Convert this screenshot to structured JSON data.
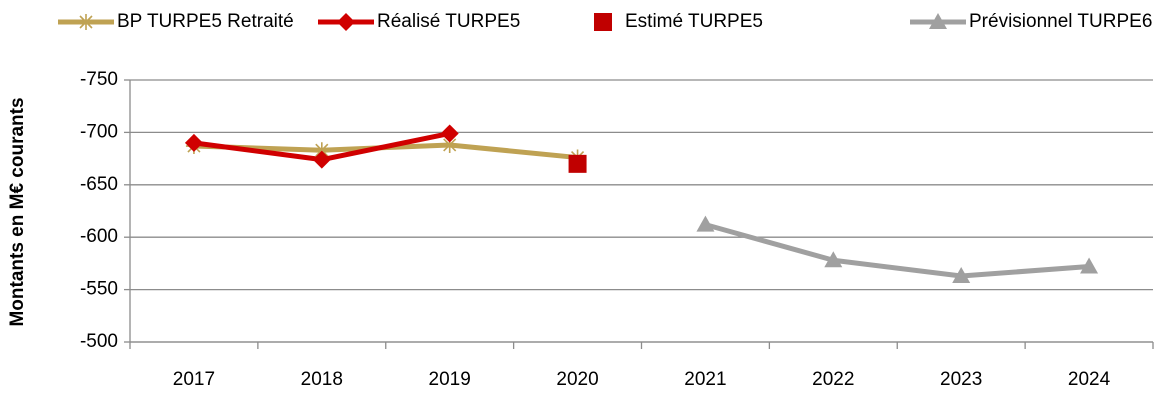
{
  "chart_data": {
    "type": "line",
    "y_label": "Montants en M€ courants",
    "categories": [
      "2017",
      "2018",
      "2019",
      "2020",
      "2021",
      "2022",
      "2023",
      "2024"
    ],
    "series": [
      {
        "name": "BP TURPE5 Retraité",
        "color": "#bfa253",
        "marker": "star",
        "line": true,
        "values": [
          -687,
          -683,
          -688,
          -676,
          null,
          null,
          null,
          null
        ]
      },
      {
        "name": "Réalisé TURPE5",
        "color": "#d00000",
        "marker": "diamond",
        "line": true,
        "values": [
          -690,
          -674,
          -699,
          null,
          null,
          null,
          null,
          null
        ]
      },
      {
        "name": "Estimé TURPE5",
        "color": "#c00000",
        "marker": "square",
        "line": false,
        "values": [
          null,
          null,
          null,
          -670,
          null,
          null,
          null,
          null
        ]
      },
      {
        "name": "Prévisionnel TURPE6",
        "color": "#a0a0a0",
        "marker": "triangle",
        "line": true,
        "values": [
          null,
          null,
          null,
          null,
          -612,
          -578,
          -563,
          -572
        ]
      }
    ],
    "ylim": [
      -500,
      -750
    ],
    "yticks": [
      -750,
      -700,
      -650,
      -600,
      -550,
      -500
    ],
    "grid": true,
    "legend": "top"
  }
}
